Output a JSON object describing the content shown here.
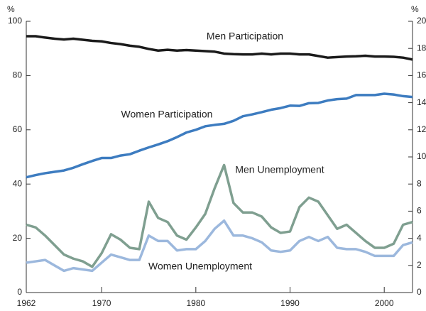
{
  "chart_data": {
    "type": "line",
    "y_label": "%",
    "y2_label": "%",
    "x": [
      1962,
      1963,
      1964,
      1965,
      1966,
      1967,
      1968,
      1969,
      1970,
      1971,
      1972,
      1973,
      1974,
      1975,
      1976,
      1977,
      1978,
      1979,
      1980,
      1981,
      1982,
      1983,
      1984,
      1985,
      1986,
      1987,
      1988,
      1989,
      1990,
      1991,
      1992,
      1993,
      1994,
      1995,
      1996,
      1997,
      1998,
      1999,
      2000,
      2001,
      2002,
      2003
    ],
    "xlim": [
      1962,
      2003
    ],
    "xticks": [
      1962,
      1970,
      1980,
      1990,
      2000
    ],
    "ylim": [
      0,
      100
    ],
    "yticks": [
      0,
      20,
      40,
      60,
      80,
      100
    ],
    "y2lim": [
      0,
      20
    ],
    "y2ticks": [
      0,
      2,
      4,
      6,
      8,
      10,
      12,
      14,
      16,
      18,
      20
    ],
    "series": [
      {
        "name": "Men Participation",
        "color": "#1a1a1a",
        "values": [
          94.5,
          94.5,
          94,
          93.6,
          93.3,
          93.6,
          93.2,
          92.8,
          92.6,
          92,
          91.6,
          91,
          90.6,
          89.8,
          89.2,
          89.5,
          89.2,
          89.4,
          89.2,
          89,
          88.8,
          88.1,
          87.9,
          87.8,
          87.8,
          88.1,
          87.8,
          88.1,
          88.1,
          87.8,
          87.8,
          87.2,
          86.6,
          86.8,
          87,
          87.1,
          87.3,
          87,
          87,
          86.9,
          86.6,
          85.9
        ]
      },
      {
        "name": "Women Participation",
        "color": "#3d7cc0",
        "values": [
          42.5,
          43.3,
          44,
          44.5,
          45,
          46,
          47.3,
          48.5,
          49.6,
          49.6,
          50.5,
          51,
          52.3,
          53.5,
          54.6,
          55.8,
          57.3,
          59,
          60,
          61.3,
          61.8,
          62.2,
          63.3,
          65,
          65.7,
          66.5,
          67.4,
          68,
          68.9,
          68.8,
          69.8,
          69.9,
          70.8,
          71.3,
          71.5,
          72.8,
          72.8,
          72.8,
          73.3,
          73,
          72.4,
          72.1
        ]
      },
      {
        "name": "Men Unemployment",
        "color": "#7f9f90",
        "axis": "y2",
        "values": [
          5.0,
          4.8,
          4.2,
          3.5,
          2.8,
          2.5,
          2.3,
          1.9,
          2.9,
          4.3,
          3.9,
          3.3,
          3.2,
          6.7,
          5.5,
          5.2,
          4.2,
          3.9,
          4.8,
          5.8,
          7.7,
          9.4,
          6.6,
          5.9,
          5.9,
          5.6,
          4.8,
          4.4,
          4.5,
          6.3,
          7.0,
          6.7,
          5.7,
          4.7,
          5.0,
          4.4,
          3.8,
          3.3,
          3.3,
          3.6,
          5.0,
          5.2
        ]
      },
      {
        "name": "Women Unemployment",
        "color": "#9cb8dd",
        "axis": "y2",
        "values": [
          2.2,
          2.3,
          2.4,
          2.0,
          1.6,
          1.8,
          1.7,
          1.6,
          2.2,
          2.8,
          2.6,
          2.4,
          2.4,
          4.2,
          3.8,
          3.8,
          3.1,
          3.2,
          3.2,
          3.8,
          4.7,
          5.3,
          4.2,
          4.2,
          4.0,
          3.7,
          3.1,
          3.0,
          3.1,
          3.8,
          4.1,
          3.8,
          4.1,
          3.3,
          3.2,
          3.2,
          3.0,
          2.7,
          2.7,
          2.7,
          3.5,
          3.7
        ]
      }
    ]
  }
}
